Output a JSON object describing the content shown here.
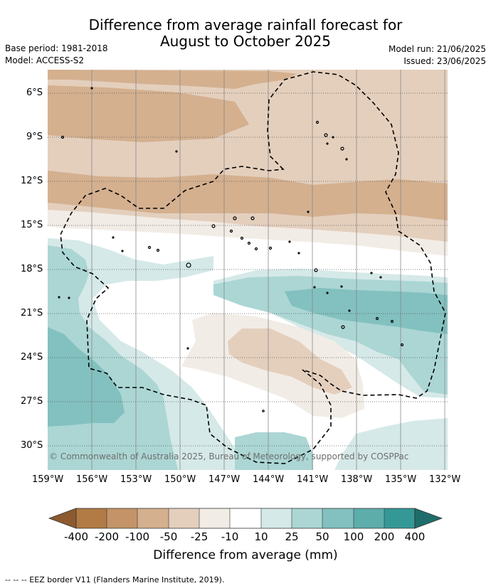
{
  "title_line1": "Difference from average rainfall forecast for",
  "title_line2": "August to October 2025",
  "base_period": "Base period: 1981-2018",
  "model": "Model: ACCESS-S2",
  "model_run": "Model run: 21/06/2025",
  "issued": "Issued: 23/06/2025",
  "credit": "© Commonwealth of Australia 2025, Bureau of Meteorology, supported by COSPPac",
  "footnote": "--  --  -- EEZ border V11 (Flanders Marine Institute, 2019).",
  "lat_labels": [
    "6°S",
    "9°S",
    "12°S",
    "15°S",
    "18°S",
    "21°S",
    "24°S",
    "27°S",
    "30°S"
  ],
  "lon_labels": [
    "159°W",
    "156°W",
    "153°W",
    "150°W",
    "147°W",
    "144°W",
    "141°W",
    "138°W",
    "135°W",
    "132°W"
  ],
  "colorbar": {
    "label": "Difference from average (mm)",
    "ticks": [
      "-400",
      "-200",
      "-100",
      "-50",
      "-25",
      "-10",
      "10",
      "25",
      "50",
      "100",
      "200",
      "400"
    ],
    "colors": [
      "#8c5a2e",
      "#b27a44",
      "#c49468",
      "#d4b08f",
      "#e4cfbd",
      "#f2ece6",
      "#ffffff",
      "#d5e9e8",
      "#abd6d4",
      "#82c1bf",
      "#5dadab",
      "#349996",
      "#1f6d6a"
    ]
  }
}
